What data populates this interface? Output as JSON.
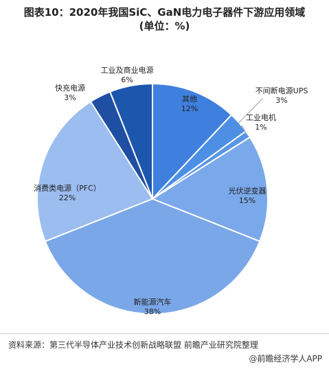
{
  "title_line1": "图表10：2020年我国SiC、GaN电力电子器件下游应用领域",
  "title_line2": "(单位：%)",
  "chart_data": {
    "type": "pie",
    "title": "图表10：2020年我国SiC、GaN电力电子器件下游应用领域 (单位：%)",
    "unit": "%",
    "slices": [
      {
        "label": "其他",
        "value": 12,
        "value_label": "12%",
        "color": "#3f7fdd"
      },
      {
        "label": "不间断电源UPS",
        "value": 3,
        "value_label": "3%",
        "color": "#4e8fe6"
      },
      {
        "label": "工业电机",
        "value": 1,
        "value_label": "1%",
        "color": "#5a96e6"
      },
      {
        "label": "光伏逆变器",
        "value": 15,
        "value_label": "15%",
        "color": "#79a9ea"
      },
      {
        "label": "新能源汽车",
        "value": 38,
        "value_label": "38%",
        "color": "#7aa7e8"
      },
      {
        "label": "消费类电源（PFC）",
        "value": 22,
        "value_label": "22%",
        "color": "#9bbdf0"
      },
      {
        "label": "快充电源",
        "value": 3,
        "value_label": "3%",
        "color": "#1e4fa3"
      },
      {
        "label": "工业及商业电源",
        "value": 6,
        "value_label": "6%",
        "color": "#1c56ad"
      }
    ]
  },
  "source": "资料来源：第三代半导体产业技术创新战略联盟 前瞻产业研究院整理",
  "credit_at": "@",
  "credit": "前瞻经济学人APP"
}
